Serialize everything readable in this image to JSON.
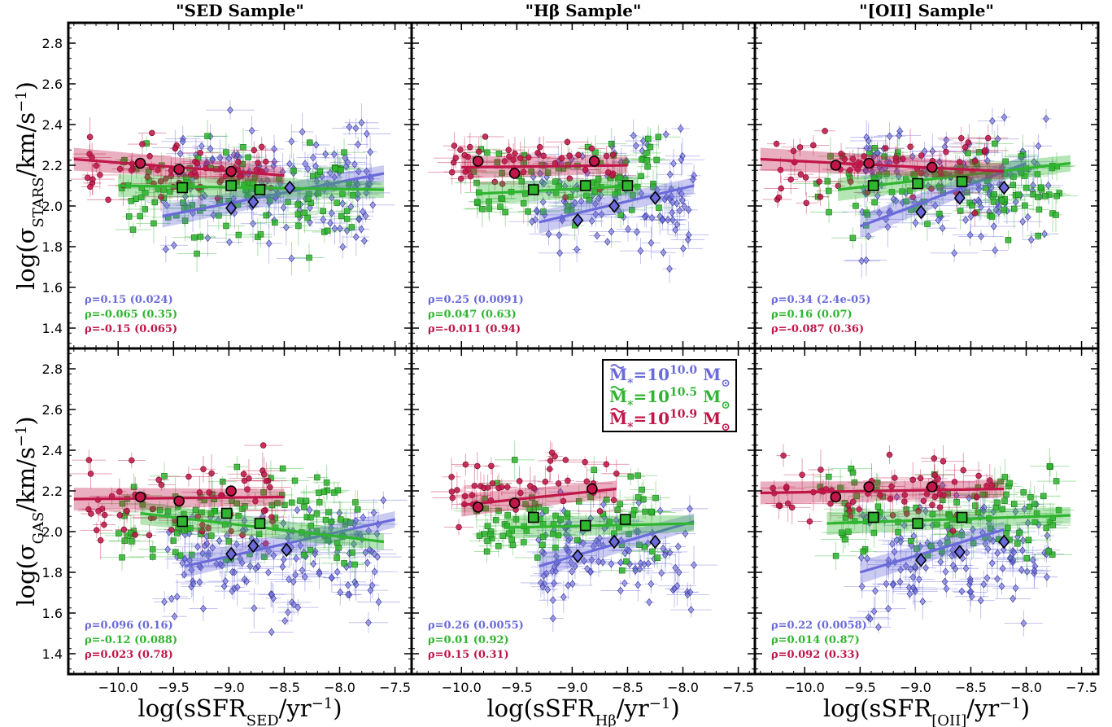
{
  "colors": {
    "low": "#6a6adb",
    "mid": "#2fb52f",
    "high": "#c01648"
  },
  "legend": {
    "items": [
      {
        "prefix": "M",
        "sub": "*",
        "eq": "=10",
        "exp": "10.0",
        "unit": " M",
        "sun": "⊙",
        "color": "#6a6adb"
      },
      {
        "prefix": "M",
        "sub": "*",
        "eq": "=10",
        "exp": "10.5",
        "unit": " M",
        "sun": "⊙",
        "color": "#2fb52f"
      },
      {
        "prefix": "M",
        "sub": "*",
        "eq": "=10",
        "exp": "10.9",
        "unit": " M",
        "sun": "⊙",
        "color": "#c01648"
      }
    ]
  },
  "chart_data": {
    "type": "scatter",
    "grid": false,
    "xlim": [
      -10.45,
      -7.35
    ],
    "ylim": [
      1.3,
      2.9
    ],
    "xticks": [
      -10.0,
      -9.5,
      -9.0,
      -8.5,
      -8.0,
      -7.5
    ],
    "xticklabels": [
      "−10.0",
      "−9.5",
      "−9.0",
      "−8.5",
      "−8.0",
      "−7.5"
    ],
    "yticks": [
      1.4,
      1.6,
      1.8,
      2.0,
      2.2,
      2.4,
      2.6,
      2.8
    ],
    "yticklabels": [
      "1.4",
      "1.6",
      "1.8",
      "2.0",
      "2.2",
      "2.4",
      "2.6",
      "2.8"
    ],
    "column_titles": [
      "\"SED Sample\"",
      "\"Hβ Sample\"",
      "\"[OII] Sample\""
    ],
    "x_labels": [
      {
        "pre": "log(sSFR",
        "sub": "SED",
        "post": "/yr",
        "sup": "−1",
        "end": ")"
      },
      {
        "pre": "log(sSFR",
        "sub": "Hβ",
        "post": "/yr",
        "sup": "−1",
        "end": ")"
      },
      {
        "pre": "log(sSFR",
        "sub": "[OII]",
        "post": "/yr",
        "sup": "−1",
        "end": ")"
      }
    ],
    "y_labels": [
      {
        "pre": "log(σ",
        "sub": "STARS",
        "post": "/km/s",
        "sup": "−1",
        "end": ")"
      },
      {
        "pre": "log(σ",
        "sub": "GAS",
        "post": "/km/s",
        "sup": "−1",
        "end": ")"
      }
    ],
    "panels": [
      {
        "row": 0,
        "col": 0,
        "rho": [
          "ρ=0.15 (0.024)",
          "ρ=-0.065 (0.35)",
          "ρ=-0.15 (0.065)"
        ],
        "fits": [
          {
            "x": [
              -9.6,
              -7.6
            ],
            "y": [
              1.95,
              2.16
            ]
          },
          {
            "x": [
              -10.0,
              -7.6
            ],
            "y": [
              2.1,
              2.08
            ]
          },
          {
            "x": [
              -10.4,
              -8.5
            ],
            "y": [
              2.23,
              2.15
            ]
          }
        ],
        "medians": [
          {
            "x": [
              -8.98,
              -8.78,
              -8.45
            ],
            "y": [
              1.99,
              2.02,
              2.09
            ]
          },
          {
            "x": [
              -9.42,
              -8.98,
              -8.72
            ],
            "y": [
              2.09,
              2.1,
              2.08
            ]
          },
          {
            "x": [
              -9.8,
              -9.45,
              -8.98
            ],
            "y": [
              2.21,
              2.18,
              2.17
            ]
          }
        ],
        "scatter": [
          {
            "xmin": -9.6,
            "xmax": -7.7,
            "ymin": 1.6,
            "ymax": 2.6,
            "n": 150,
            "seed": 11
          },
          {
            "xmin": -10.0,
            "xmax": -7.8,
            "ymin": 1.7,
            "ymax": 2.4,
            "n": 110,
            "seed": 12
          },
          {
            "xmin": -10.3,
            "xmax": -8.6,
            "ymin": 1.9,
            "ymax": 2.45,
            "n": 60,
            "seed": 13
          }
        ]
      },
      {
        "row": 0,
        "col": 1,
        "rho": [
          "ρ=0.25 (0.0091)",
          "ρ=0.047 (0.63)",
          "ρ=-0.011 (0.94)"
        ],
        "fits": [
          {
            "x": [
              -9.3,
              -7.9
            ],
            "y": [
              1.92,
              2.1
            ]
          },
          {
            "x": [
              -9.85,
              -8.4
            ],
            "y": [
              2.06,
              2.1
            ]
          },
          {
            "x": [
              -10.0,
              -8.5
            ],
            "y": [
              2.19,
              2.2
            ]
          }
        ],
        "medians": [
          {
            "x": [
              -8.95,
              -8.62,
              -8.25
            ],
            "y": [
              1.93,
              2.0,
              2.04
            ]
          },
          {
            "x": [
              -9.35,
              -8.88,
              -8.5
            ],
            "y": [
              2.08,
              2.1,
              2.1
            ]
          },
          {
            "x": [
              -9.85,
              -9.52,
              -8.8
            ],
            "y": [
              2.22,
              2.16,
              2.22
            ]
          }
        ],
        "scatter": [
          {
            "xmin": -9.4,
            "xmax": -7.9,
            "ymin": 1.6,
            "ymax": 2.5,
            "n": 110,
            "seed": 21
          },
          {
            "xmin": -9.9,
            "xmax": -8.2,
            "ymin": 1.8,
            "ymax": 2.45,
            "n": 80,
            "seed": 22
          },
          {
            "xmin": -10.1,
            "xmax": -8.6,
            "ymin": 2.0,
            "ymax": 2.4,
            "n": 45,
            "seed": 23
          }
        ]
      },
      {
        "row": 0,
        "col": 2,
        "rho": [
          "ρ=0.34 (2.4e-05)",
          "ρ=0.16 (0.07)",
          "ρ=-0.087 (0.36)"
        ],
        "fits": [
          {
            "x": [
              -9.5,
              -8.0
            ],
            "y": [
              1.9,
              2.21
            ]
          },
          {
            "x": [
              -9.7,
              -7.6
            ],
            "y": [
              2.08,
              2.21
            ]
          },
          {
            "x": [
              -10.4,
              -8.2
            ],
            "y": [
              2.23,
              2.17
            ]
          }
        ],
        "medians": [
          {
            "x": [
              -8.95,
              -8.6,
              -8.2
            ],
            "y": [
              1.97,
              2.04,
              2.09
            ]
          },
          {
            "x": [
              -9.38,
              -8.98,
              -8.58
            ],
            "y": [
              2.1,
              2.11,
              2.12
            ]
          },
          {
            "x": [
              -9.72,
              -9.42,
              -8.85
            ],
            "y": [
              2.2,
              2.21,
              2.19
            ]
          }
        ],
        "scatter": [
          {
            "xmin": -9.5,
            "xmax": -7.8,
            "ymin": 1.6,
            "ymax": 2.6,
            "n": 140,
            "seed": 31
          },
          {
            "xmin": -9.9,
            "xmax": -7.7,
            "ymin": 1.8,
            "ymax": 2.4,
            "n": 100,
            "seed": 32
          },
          {
            "xmin": -10.3,
            "xmax": -8.3,
            "ymin": 1.9,
            "ymax": 2.45,
            "n": 60,
            "seed": 33
          }
        ]
      },
      {
        "row": 1,
        "col": 0,
        "rho": [
          "ρ=0.096 (0.16)",
          "ρ=-0.12 (0.088)",
          "ρ=0.023 (0.78)"
        ],
        "fits": [
          {
            "x": [
              -9.4,
              -7.5
            ],
            "y": [
              1.83,
              2.06
            ]
          },
          {
            "x": [
              -9.8,
              -7.6
            ],
            "y": [
              2.09,
              1.95
            ]
          },
          {
            "x": [
              -10.4,
              -8.5
            ],
            "y": [
              2.16,
              2.17
            ]
          }
        ],
        "medians": [
          {
            "x": [
              -8.98,
              -8.78,
              -8.48
            ],
            "y": [
              1.89,
              1.93,
              1.91
            ]
          },
          {
            "x": [
              -9.42,
              -9.02,
              -8.72
            ],
            "y": [
              2.05,
              2.09,
              2.04
            ]
          },
          {
            "x": [
              -9.8,
              -9.45,
              -8.98
            ],
            "y": [
              2.17,
              2.15,
              2.2
            ]
          }
        ],
        "scatter": [
          {
            "xmin": -9.6,
            "xmax": -7.6,
            "ymin": 1.45,
            "ymax": 2.3,
            "n": 150,
            "seed": 41
          },
          {
            "xmin": -10.0,
            "xmax": -7.8,
            "ymin": 1.7,
            "ymax": 2.4,
            "n": 110,
            "seed": 42
          },
          {
            "xmin": -10.3,
            "xmax": -8.6,
            "ymin": 1.8,
            "ymax": 2.5,
            "n": 60,
            "seed": 43
          }
        ]
      },
      {
        "row": 1,
        "col": 1,
        "rho": [
          "ρ=0.26 (0.0055)",
          "ρ=0.01 (0.92)",
          "ρ=0.15 (0.31)"
        ],
        "fits": [
          {
            "x": [
              -9.3,
              -7.9
            ],
            "y": [
              1.83,
              2.05
            ]
          },
          {
            "x": [
              -9.6,
              -7.9
            ],
            "y": [
              2.02,
              2.04
            ]
          },
          {
            "x": [
              -10.0,
              -8.6
            ],
            "y": [
              2.13,
              2.21
            ]
          }
        ],
        "medians": [
          {
            "x": [
              -8.95,
              -8.62,
              -8.25
            ],
            "y": [
              1.88,
              1.95,
              1.95
            ]
          },
          {
            "x": [
              -9.35,
              -8.88,
              -8.52
            ],
            "y": [
              2.07,
              2.03,
              2.06
            ]
          },
          {
            "x": [
              -9.85,
              -9.52,
              -8.82
            ],
            "y": [
              2.12,
              2.14,
              2.21
            ]
          }
        ],
        "scatter": [
          {
            "xmin": -9.4,
            "xmax": -7.9,
            "ymin": 1.45,
            "ymax": 2.3,
            "n": 110,
            "seed": 51
          },
          {
            "xmin": -9.9,
            "xmax": -8.2,
            "ymin": 1.7,
            "ymax": 2.4,
            "n": 80,
            "seed": 52
          },
          {
            "xmin": -10.1,
            "xmax": -8.6,
            "ymin": 2.0,
            "ymax": 2.45,
            "n": 45,
            "seed": 53
          }
        ]
      },
      {
        "row": 1,
        "col": 2,
        "rho": [
          "ρ=0.22 (0.0058)",
          "ρ=0.014 (0.87)",
          "ρ=0.092 (0.33)"
        ],
        "fits": [
          {
            "x": [
              -9.5,
              -8.2
            ],
            "y": [
              1.8,
              2.01
            ]
          },
          {
            "x": [
              -9.8,
              -7.6
            ],
            "y": [
              2.04,
              2.08
            ]
          },
          {
            "x": [
              -10.4,
              -8.2
            ],
            "y": [
              2.19,
              2.21
            ]
          }
        ],
        "medians": [
          {
            "x": [
              -8.95,
              -8.6,
              -8.2
            ],
            "y": [
              1.86,
              1.9,
              1.95
            ]
          },
          {
            "x": [
              -9.38,
              -8.98,
              -8.58
            ],
            "y": [
              2.07,
              2.04,
              2.07
            ]
          },
          {
            "x": [
              -9.72,
              -9.42,
              -8.85
            ],
            "y": [
              2.17,
              2.22,
              2.22
            ]
          }
        ],
        "scatter": [
          {
            "xmin": -9.5,
            "xmax": -7.8,
            "ymin": 1.45,
            "ymax": 2.3,
            "n": 140,
            "seed": 61
          },
          {
            "xmin": -9.9,
            "xmax": -7.7,
            "ymin": 1.75,
            "ymax": 2.4,
            "n": 100,
            "seed": 62
          },
          {
            "xmin": -10.3,
            "xmax": -8.3,
            "ymin": 1.9,
            "ymax": 2.45,
            "n": 60,
            "seed": 63
          }
        ]
      }
    ]
  }
}
